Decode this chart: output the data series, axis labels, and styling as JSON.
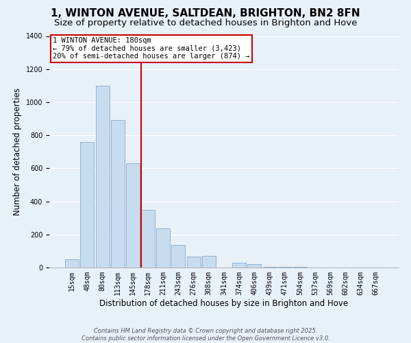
{
  "title_line1": "1, WINTON AVENUE, SALTDEAN, BRIGHTON, BN2 8FN",
  "title_line2": "Size of property relative to detached houses in Brighton and Hove",
  "xlabel": "Distribution of detached houses by size in Brighton and Hove",
  "ylabel": "Number of detached properties",
  "categories": [
    "15sqm",
    "48sqm",
    "80sqm",
    "113sqm",
    "145sqm",
    "178sqm",
    "211sqm",
    "243sqm",
    "276sqm",
    "308sqm",
    "341sqm",
    "374sqm",
    "406sqm",
    "439sqm",
    "471sqm",
    "504sqm",
    "537sqm",
    "569sqm",
    "602sqm",
    "634sqm",
    "667sqm"
  ],
  "values": [
    50,
    760,
    1100,
    890,
    630,
    350,
    235,
    135,
    65,
    70,
    0,
    30,
    20,
    5,
    5,
    3,
    2,
    1,
    1,
    1,
    1
  ],
  "bar_color": "#c8dcf0",
  "bar_edge_color": "#90b4d0",
  "vline_color": "#cc0000",
  "annotation_title": "1 WINTON AVENUE: 180sqm",
  "annotation_line2": "← 79% of detached houses are smaller (3,423)",
  "annotation_line3": "20% of semi-detached houses are larger (874) →",
  "annotation_box_color": "white",
  "annotation_box_edge_color": "#cc0000",
  "footer_line1": "Contains HM Land Registry data © Crown copyright and database right 2025.",
  "footer_line2": "Contains public sector information licensed under the Open Government Licence v3.0.",
  "ylim": [
    0,
    1400
  ],
  "yticks": [
    0,
    200,
    400,
    600,
    800,
    1000,
    1200,
    1400
  ],
  "bg_color": "#e8f0f8",
  "grid_color": "white",
  "title_fontsize": 11,
  "subtitle_fontsize": 9.5,
  "axis_label_fontsize": 8.5,
  "tick_fontsize": 7,
  "footer_fontsize": 6,
  "ann_fontsize": 7.5
}
